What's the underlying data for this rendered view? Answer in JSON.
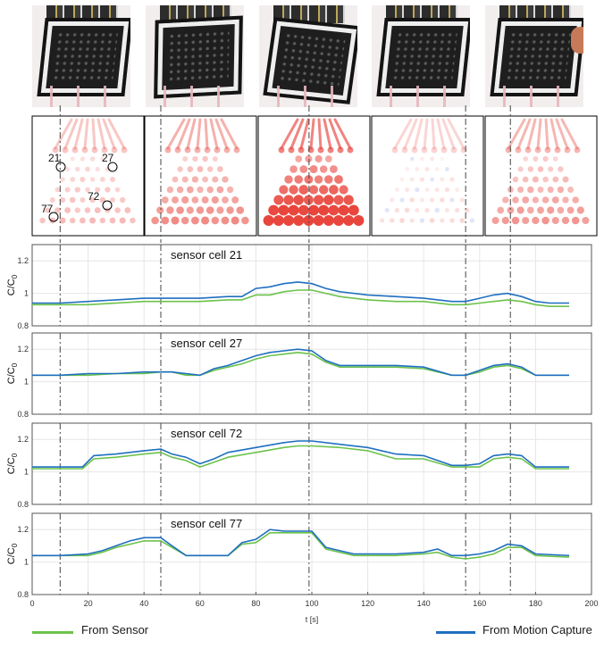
{
  "colors": {
    "sensor": "#6cc24a",
    "mocap": "#1f6fbf",
    "heat_high": "#e8453c"
  },
  "heatmap_labels": {
    "cell21": "21",
    "cell27": "27",
    "cell72": "72",
    "cell77": "77"
  },
  "legend": {
    "sensor": "From Sensor",
    "mocap": "From Motion Capture"
  },
  "chart_data": [
    {
      "type": "line",
      "title": "sensor cell 21",
      "ylabel_main": "C/C",
      "ylabel_sub": "0",
      "xlim": [
        0,
        200
      ],
      "ylim": [
        0.8,
        1.3
      ],
      "yticks": [
        "0.8",
        "1",
        "1.2"
      ],
      "event_times": [
        10,
        46,
        99,
        155,
        171
      ],
      "series": [
        {
          "name": "From Sensor",
          "x": [
            0,
            10,
            20,
            30,
            40,
            46,
            50,
            60,
            70,
            75,
            80,
            85,
            90,
            95,
            100,
            105,
            110,
            120,
            130,
            140,
            150,
            155,
            160,
            165,
            170,
            175,
            180,
            185,
            192
          ],
          "values": [
            0.93,
            0.93,
            0.93,
            0.94,
            0.95,
            0.95,
            0.95,
            0.95,
            0.96,
            0.96,
            0.99,
            0.99,
            1.01,
            1.02,
            1.02,
            1.0,
            0.98,
            0.96,
            0.95,
            0.95,
            0.93,
            0.93,
            0.94,
            0.95,
            0.96,
            0.95,
            0.93,
            0.92,
            0.92
          ]
        },
        {
          "name": "From Motion Capture",
          "x": [
            0,
            10,
            20,
            30,
            40,
            46,
            50,
            60,
            70,
            75,
            80,
            85,
            90,
            95,
            100,
            105,
            110,
            120,
            130,
            140,
            150,
            155,
            160,
            165,
            170,
            175,
            180,
            185,
            192
          ],
          "values": [
            0.94,
            0.94,
            0.95,
            0.96,
            0.97,
            0.97,
            0.97,
            0.97,
            0.98,
            0.98,
            1.03,
            1.04,
            1.06,
            1.07,
            1.06,
            1.03,
            1.01,
            0.99,
            0.98,
            0.97,
            0.95,
            0.95,
            0.97,
            0.99,
            1.0,
            0.98,
            0.95,
            0.94,
            0.94
          ]
        }
      ]
    },
    {
      "type": "line",
      "title": "sensor cell 27",
      "ylabel_main": "C/C",
      "ylabel_sub": "0",
      "xlim": [
        0,
        200
      ],
      "ylim": [
        0.8,
        1.3
      ],
      "yticks": [
        "0.8",
        "1",
        "1.2"
      ],
      "event_times": [
        10,
        46,
        99,
        155,
        171
      ],
      "series": [
        {
          "name": "From Sensor",
          "x": [
            0,
            10,
            20,
            30,
            40,
            46,
            50,
            55,
            60,
            65,
            70,
            75,
            80,
            85,
            90,
            95,
            100,
            105,
            110,
            120,
            130,
            140,
            150,
            155,
            160,
            165,
            170,
            175,
            180,
            192
          ],
          "values": [
            1.04,
            1.04,
            1.04,
            1.05,
            1.05,
            1.06,
            1.06,
            1.04,
            1.04,
            1.07,
            1.09,
            1.11,
            1.14,
            1.16,
            1.17,
            1.18,
            1.17,
            1.12,
            1.09,
            1.09,
            1.09,
            1.08,
            1.04,
            1.04,
            1.06,
            1.09,
            1.1,
            1.08,
            1.04,
            1.04
          ]
        },
        {
          "name": "From Motion Capture",
          "x": [
            0,
            10,
            20,
            30,
            40,
            46,
            50,
            55,
            60,
            65,
            70,
            75,
            80,
            85,
            90,
            95,
            100,
            105,
            110,
            120,
            130,
            140,
            150,
            155,
            160,
            165,
            170,
            175,
            180,
            192
          ],
          "values": [
            1.04,
            1.04,
            1.05,
            1.05,
            1.06,
            1.06,
            1.06,
            1.05,
            1.04,
            1.08,
            1.1,
            1.13,
            1.16,
            1.18,
            1.19,
            1.2,
            1.19,
            1.13,
            1.1,
            1.1,
            1.1,
            1.09,
            1.04,
            1.04,
            1.07,
            1.1,
            1.11,
            1.09,
            1.04,
            1.04
          ]
        }
      ]
    },
    {
      "type": "line",
      "title": "sensor cell 72",
      "ylabel_main": "C/C",
      "ylabel_sub": "0",
      "xlim": [
        0,
        200
      ],
      "ylim": [
        0.8,
        1.3
      ],
      "yticks": [
        "0.8",
        "1",
        "1.2"
      ],
      "event_times": [
        10,
        46,
        99,
        155,
        171
      ],
      "series": [
        {
          "name": "From Sensor",
          "x": [
            0,
            10,
            18,
            22,
            30,
            40,
            46,
            50,
            55,
            60,
            65,
            70,
            80,
            90,
            95,
            100,
            110,
            120,
            130,
            140,
            150,
            155,
            160,
            165,
            170,
            175,
            180,
            192
          ],
          "values": [
            1.02,
            1.02,
            1.02,
            1.08,
            1.09,
            1.11,
            1.12,
            1.09,
            1.07,
            1.03,
            1.06,
            1.09,
            1.12,
            1.15,
            1.16,
            1.16,
            1.15,
            1.13,
            1.08,
            1.08,
            1.03,
            1.03,
            1.03,
            1.08,
            1.09,
            1.08,
            1.02,
            1.02
          ]
        },
        {
          "name": "From Motion Capture",
          "x": [
            0,
            10,
            18,
            22,
            30,
            40,
            46,
            50,
            55,
            60,
            65,
            70,
            80,
            90,
            95,
            100,
            110,
            120,
            130,
            140,
            150,
            155,
            160,
            165,
            170,
            175,
            180,
            192
          ],
          "values": [
            1.03,
            1.03,
            1.03,
            1.1,
            1.11,
            1.13,
            1.14,
            1.11,
            1.09,
            1.05,
            1.08,
            1.12,
            1.15,
            1.18,
            1.19,
            1.19,
            1.17,
            1.15,
            1.11,
            1.1,
            1.04,
            1.04,
            1.05,
            1.1,
            1.11,
            1.1,
            1.03,
            1.03
          ]
        }
      ]
    },
    {
      "type": "line",
      "title": "sensor cell 77",
      "ylabel_main": "C/C",
      "ylabel_sub": "0",
      "xlim": [
        0,
        200
      ],
      "ylim": [
        0.8,
        1.3
      ],
      "yticks": [
        "0.8",
        "1",
        "1.2"
      ],
      "event_times": [
        10,
        46,
        99,
        155,
        171
      ],
      "series": [
        {
          "name": "From Sensor",
          "x": [
            0,
            10,
            20,
            25,
            30,
            35,
            40,
            46,
            50,
            55,
            60,
            70,
            75,
            80,
            85,
            90,
            95,
            100,
            105,
            110,
            115,
            120,
            130,
            140,
            145,
            150,
            155,
            160,
            165,
            170,
            175,
            180,
            192
          ],
          "values": [
            1.04,
            1.04,
            1.04,
            1.06,
            1.09,
            1.11,
            1.13,
            1.13,
            1.09,
            1.04,
            1.04,
            1.04,
            1.11,
            1.12,
            1.18,
            1.18,
            1.18,
            1.18,
            1.08,
            1.06,
            1.04,
            1.04,
            1.04,
            1.05,
            1.06,
            1.03,
            1.02,
            1.03,
            1.05,
            1.09,
            1.09,
            1.04,
            1.03
          ]
        },
        {
          "name": "From Motion Capture",
          "x": [
            0,
            10,
            20,
            25,
            30,
            35,
            40,
            46,
            50,
            55,
            60,
            70,
            75,
            80,
            85,
            90,
            95,
            100,
            105,
            110,
            115,
            120,
            130,
            140,
            145,
            150,
            155,
            160,
            165,
            170,
            175,
            180,
            192
          ],
          "values": [
            1.04,
            1.04,
            1.05,
            1.07,
            1.1,
            1.13,
            1.15,
            1.15,
            1.1,
            1.04,
            1.04,
            1.04,
            1.12,
            1.14,
            1.2,
            1.19,
            1.19,
            1.19,
            1.09,
            1.07,
            1.05,
            1.05,
            1.05,
            1.06,
            1.08,
            1.04,
            1.04,
            1.05,
            1.07,
            1.11,
            1.1,
            1.05,
            1.04
          ]
        }
      ]
    }
  ],
  "x_axis": {
    "label": "t [s]",
    "ticks": [
      "0",
      "20",
      "40",
      "60",
      "80",
      "100",
      "120",
      "140",
      "160",
      "180",
      "200"
    ]
  }
}
